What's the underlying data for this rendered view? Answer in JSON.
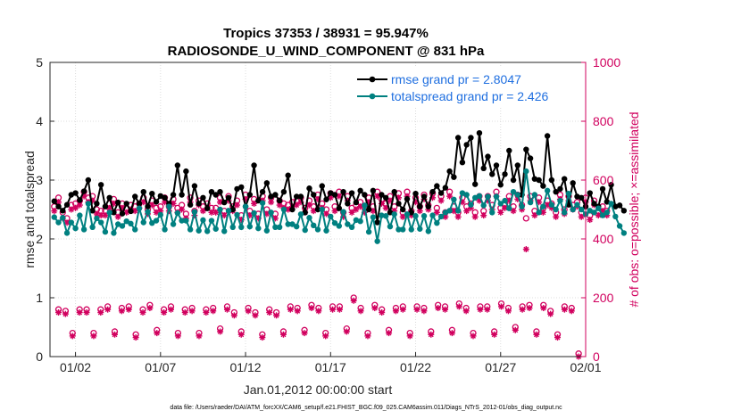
{
  "colors": {
    "black": "#000000",
    "teal": "#008080",
    "magenta": "#d1005e",
    "legend_text": "#1f6fe0"
  },
  "chart_data": {
    "type": "line",
    "title": "Tropics 37353 / 38931 = 95.947%",
    "subtitle": "RADIOSONDE_U_WIND_COMPONENT @ 831 hPa",
    "xlabel": "Jan.01,2012 00:00:00 start",
    "ylabel": "rmse and totalspread",
    "ylabel_right": "# of obs: o=possible; ×=assimilated",
    "footer": "data file: /Users/raeder/DAI/ATM_forcXX/CAM6_setup/f.e21.FHIST_BGC.f09_025.CAM6assim.011/Diags_NTrS_2012-01/obs_diag_output.nc",
    "xlim": [
      0.5,
      32
    ],
    "ylim": [
      0,
      5
    ],
    "ylim_right": [
      0,
      1000
    ],
    "xticks": [
      2,
      7,
      12,
      17,
      22,
      27,
      32
    ],
    "xtick_labels": [
      "01/02",
      "01/07",
      "01/12",
      "01/17",
      "01/22",
      "01/27",
      "02/01"
    ],
    "yticks": [
      0,
      1,
      2,
      3,
      4,
      5
    ],
    "yticks_right": [
      0,
      200,
      400,
      600,
      800,
      1000
    ],
    "legend": {
      "position": "top-right",
      "entries": [
        "rmse grand pr = 2.8047",
        "totalspread grand pr = 2.426"
      ]
    },
    "x_step": 0.25,
    "x_start": 0.75,
    "series": [
      {
        "name": "rmse grand pr = 2.8047",
        "axis": "left",
        "color": "#000000",
        "values": [
          2.64,
          2.55,
          2.48,
          2.58,
          2.75,
          2.78,
          2.66,
          2.81,
          3.0,
          2.48,
          2.6,
          2.92,
          2.55,
          2.7,
          2.45,
          2.62,
          2.43,
          2.6,
          2.47,
          2.72,
          2.6,
          2.8,
          2.55,
          2.77,
          2.63,
          2.73,
          2.7,
          2.6,
          2.75,
          3.25,
          2.75,
          3.15,
          2.58,
          2.9,
          2.6,
          2.7,
          2.52,
          2.8,
          2.75,
          2.8,
          2.62,
          2.7,
          2.5,
          2.85,
          2.88,
          2.55,
          2.75,
          3.25,
          2.65,
          2.8,
          2.95,
          2.72,
          2.75,
          2.65,
          2.8,
          3.08,
          2.5,
          2.72,
          2.72,
          2.45,
          2.86,
          2.75,
          2.5,
          2.9,
          2.67,
          2.78,
          2.75,
          2.52,
          2.8,
          2.6,
          2.78,
          2.62,
          2.82,
          2.75,
          2.5,
          2.82,
          2.28,
          2.75,
          2.7,
          2.45,
          2.8,
          2.6,
          2.5,
          2.68,
          2.45,
          2.77,
          2.55,
          2.72,
          2.55,
          2.8,
          2.9,
          2.78,
          2.87,
          3.15,
          3.05,
          3.72,
          3.3,
          3.6,
          3.72,
          2.93,
          3.8,
          3.2,
          3.4,
          3.1,
          3.25,
          2.92,
          3.1,
          3.5,
          3.0,
          3.25,
          2.75,
          3.52,
          3.37,
          3.02,
          3.0,
          2.9,
          3.75,
          3.0,
          2.8,
          2.85,
          3.02,
          2.58,
          2.95,
          2.72,
          2.7,
          2.55,
          2.78,
          2.6,
          2.55,
          2.85,
          2.63,
          2.92,
          2.55,
          2.57,
          2.48
        ]
      },
      {
        "name": "totalspread grand pr = 2.426",
        "axis": "left",
        "color": "#008080",
        "values": [
          2.37,
          2.28,
          2.36,
          2.1,
          2.28,
          2.18,
          2.4,
          2.16,
          2.6,
          2.2,
          2.35,
          2.28,
          2.12,
          2.45,
          2.1,
          2.25,
          2.22,
          2.3,
          2.26,
          2.16,
          2.52,
          2.28,
          2.46,
          2.27,
          2.31,
          2.41,
          2.16,
          2.55,
          2.25,
          2.44,
          2.31,
          2.31,
          2.16,
          2.46,
          2.14,
          2.32,
          2.13,
          2.31,
          2.17,
          2.5,
          2.13,
          2.48,
          2.2,
          2.41,
          2.2,
          2.55,
          2.21,
          2.44,
          2.18,
          2.61,
          2.14,
          2.45,
          2.2,
          2.2,
          2.5,
          2.25,
          2.25,
          2.21,
          2.42,
          2.15,
          2.36,
          2.23,
          2.16,
          2.5,
          2.14,
          2.38,
          2.27,
          2.22,
          2.46,
          2.25,
          2.2,
          2.32,
          2.3,
          2.57,
          2.12,
          2.37,
          1.96,
          2.4,
          2.39,
          2.21,
          2.42,
          2.16,
          2.16,
          2.42,
          2.16,
          2.39,
          2.17,
          2.39,
          2.13,
          2.4,
          2.27,
          2.38,
          2.45,
          2.48,
          2.67,
          2.48,
          2.78,
          2.75,
          2.58,
          2.7,
          2.73,
          2.57,
          2.72,
          2.45,
          2.72,
          2.6,
          2.65,
          2.52,
          2.8,
          2.75,
          2.55,
          3.15,
          2.62,
          2.75,
          2.45,
          2.55,
          2.82,
          2.58,
          2.5,
          2.65,
          2.45,
          2.77,
          2.5,
          2.58,
          2.5,
          2.42,
          2.48,
          2.45,
          2.52,
          2.4,
          2.45,
          2.6,
          2.38,
          2.22,
          2.1
        ]
      }
    ],
    "obs": {
      "axis": "right",
      "color": "#d1005e",
      "x_start": 0.75,
      "x_step": 0.25,
      "possible": [
        510,
        540,
        490,
        470,
        515,
        520,
        530,
        560,
        540,
        545,
        500,
        495,
        495,
        520,
        535,
        490,
        520,
        505,
        515,
        510,
        520,
        540,
        500,
        530,
        505,
        510,
        540,
        510,
        535,
        505,
        515,
        485,
        540,
        495,
        530,
        510,
        520,
        505,
        505,
        540,
        495,
        545,
        510,
        530,
        480,
        550,
        495,
        535,
        485,
        545,
        500,
        540,
        485,
        530,
        520,
        515,
        525,
        530,
        540,
        505,
        530,
        510,
        550,
        520,
        500,
        555,
        510,
        560,
        490,
        545,
        505,
        515,
        525,
        505,
        540,
        510,
        560,
        535,
        520,
        545,
        510,
        555,
        490,
        560,
        495,
        540,
        510,
        550,
        515,
        555,
        505,
        545,
        490,
        560,
        510,
        490,
        540,
        510,
        520,
        490,
        545,
        495,
        545,
        515,
        560,
        505,
        520,
        545,
        510,
        550,
        515,
        470,
        545,
        495,
        540,
        505,
        530,
        520,
        490,
        550,
        500,
        545,
        515,
        525,
        490,
        540,
        480,
        530,
        495,
        510,
        495
      ],
      "assimilated": [
        495,
        525,
        470,
        455,
        500,
        505,
        515,
        545,
        525,
        530,
        485,
        480,
        480,
        505,
        520,
        475,
        505,
        490,
        500,
        495,
        505,
        525,
        485,
        515,
        490,
        495,
        525,
        495,
        520,
        490,
        500,
        470,
        525,
        480,
        515,
        495,
        505,
        490,
        490,
        525,
        480,
        530,
        495,
        515,
        465,
        535,
        480,
        520,
        470,
        530,
        485,
        525,
        470,
        515,
        505,
        500,
        510,
        515,
        525,
        490,
        515,
        495,
        535,
        505,
        485,
        540,
        495,
        545,
        475,
        530,
        490,
        500,
        510,
        490,
        525,
        495,
        545,
        520,
        505,
        530,
        495,
        540,
        475,
        545,
        480,
        525,
        495,
        535,
        500,
        540,
        490,
        530,
        475,
        545,
        495,
        475,
        525,
        495,
        505,
        475,
        530,
        480,
        530,
        500,
        545,
        490,
        505,
        530,
        495,
        535,
        500,
        365,
        530,
        480,
        525,
        490,
        515,
        505,
        475,
        535,
        485,
        530,
        500,
        510,
        475,
        525,
        465,
        515,
        480,
        495,
        480
      ],
      "possible_low": [
        160,
        155,
        80,
        160,
        160,
        80,
        160,
        170,
        85,
        165,
        170,
        75,
        160,
        175,
        90,
        160,
        170,
        80,
        160,
        165,
        80,
        160,
        165,
        95,
        170,
        150,
        85,
        165,
        150,
        75,
        160,
        150,
        85,
        170,
        165,
        90,
        175,
        165,
        80,
        170,
        170,
        95,
        200,
        165,
        80,
        175,
        160,
        90,
        165,
        170,
        80,
        170,
        165,
        85,
        175,
        170,
        90,
        180,
        165,
        80,
        170,
        170,
        85,
        180,
        165,
        100,
        170,
        175,
        85,
        175,
        155,
        75,
        170,
        165,
        10
      ],
      "assimilated_low": [
        150,
        145,
        70,
        150,
        150,
        70,
        150,
        160,
        75,
        155,
        160,
        65,
        150,
        165,
        80,
        150,
        160,
        70,
        150,
        155,
        70,
        150,
        155,
        85,
        160,
        140,
        75,
        155,
        140,
        65,
        150,
        140,
        75,
        160,
        155,
        80,
        165,
        155,
        70,
        160,
        160,
        85,
        190,
        155,
        70,
        165,
        150,
        80,
        155,
        160,
        70,
        160,
        155,
        75,
        165,
        160,
        80,
        170,
        155,
        70,
        160,
        160,
        75,
        170,
        155,
        90,
        160,
        165,
        75,
        165,
        145,
        65,
        160,
        155,
        0
      ]
    }
  }
}
